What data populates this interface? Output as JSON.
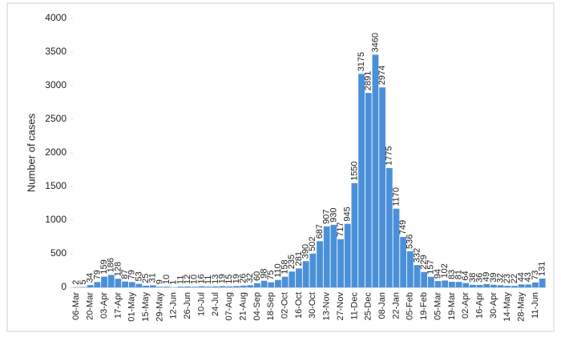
{
  "chart_data": {
    "type": "bar",
    "y_label": "Number of cases",
    "color": "#4a90d9",
    "categories": [
      "06-Mar",
      null,
      "20-Mar",
      null,
      "03-Apr",
      null,
      "17-Apr",
      null,
      "01-May",
      null,
      "15-May",
      null,
      "29-May",
      null,
      "12-Jun",
      null,
      "26-Jun",
      null,
      "10-Jul",
      null,
      "24-Jul",
      null,
      "07-Aug",
      null,
      "21-Aug",
      null,
      "04-Sep",
      null,
      "18-Sep",
      null,
      "02-Oct",
      null,
      "16-Oct",
      null,
      "30-Oct",
      null,
      "13-Nov",
      null,
      "27-Nov",
      null,
      "11-Dec",
      null,
      "25-Dec",
      null,
      "08-Jan",
      null,
      "22-Jan",
      null,
      "05-Feb",
      null,
      "19-Feb",
      null,
      "05-Mar",
      null,
      "19-Mar",
      null,
      "02-Apr",
      null,
      "16-Apr",
      null,
      "30-Apr",
      null,
      "14-May",
      null,
      "28-May",
      null,
      "11-Jun",
      null
    ],
    "values": [
      2,
      5,
      34,
      79,
      159,
      186,
      128,
      87,
      79,
      53,
      25,
      31,
      9,
      10,
      1,
      11,
      12,
      10,
      16,
      11,
      13,
      19,
      15,
      19,
      26,
      32,
      60,
      98,
      75,
      110,
      158,
      235,
      281,
      390,
      502,
      687,
      907,
      930,
      717,
      945,
      1550,
      3175,
      2891,
      3460,
      2974,
      1775,
      1170,
      749,
      536,
      332,
      229,
      157,
      94,
      102,
      83,
      81,
      64,
      38,
      36,
      49,
      39,
      32,
      23,
      22,
      44,
      43,
      73,
      131
    ],
    "ylim": [
      0,
      4000
    ],
    "yticks": [
      0,
      500,
      1000,
      1500,
      2000,
      2500,
      3000,
      3500,
      4000
    ],
    "grid": false,
    "data_labels": true
  }
}
